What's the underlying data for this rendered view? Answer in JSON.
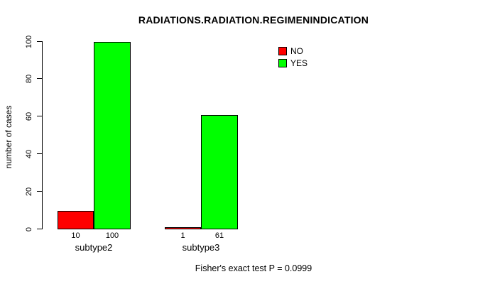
{
  "chart_data": {
    "type": "bar",
    "title": "RADIATIONS.RADIATION.REGIMENINDICATION",
    "ylabel": "number of cases",
    "xlabel": "",
    "ylim": [
      0,
      100
    ],
    "yticks": [
      0,
      20,
      40,
      60,
      80,
      100
    ],
    "grid": false,
    "categories": [
      "subtype2",
      "subtype3"
    ],
    "series": [
      {
        "name": "NO",
        "color": "#FF0000",
        "values": [
          10,
          1
        ]
      },
      {
        "name": "YES",
        "color": "#00FF00",
        "values": [
          100,
          61
        ]
      }
    ],
    "legend": {
      "position": "top-right"
    },
    "caption": "Fisher's exact test P = 0.0999",
    "colors": {
      "background": "#FFFFFF",
      "axis": "#000000",
      "text": "#000000",
      "bar_border": "#000000"
    }
  }
}
